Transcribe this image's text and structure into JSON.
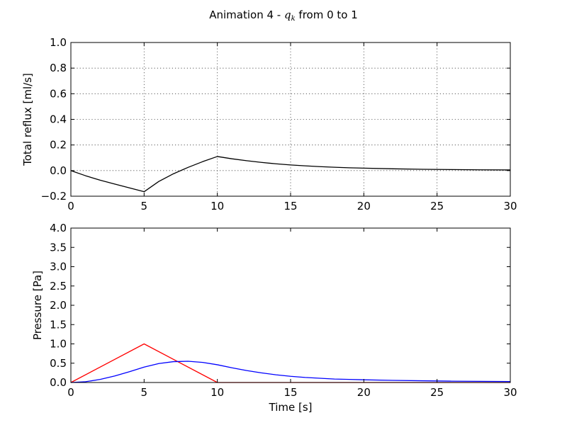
{
  "figure": {
    "title_prefix": "Animation 4 - ",
    "title_var": "q",
    "title_sub": "k",
    "title_suffix": " from 0 to 1"
  },
  "colors": {
    "axes": "#000000",
    "black_series": "#000000",
    "red_series": "#ff0000",
    "blue_series": "#0000ff"
  },
  "chart_data": [
    {
      "type": "line",
      "title": "",
      "xlabel": "",
      "ylabel": "Total reflux [ml/s]",
      "xlim": [
        0,
        30
      ],
      "ylim": [
        -0.2,
        1.0
      ],
      "xticks": [
        0,
        5,
        10,
        15,
        20,
        25,
        30
      ],
      "yticks": [
        -0.2,
        0.0,
        0.2,
        0.4,
        0.6,
        0.8,
        1.0
      ],
      "ytick_labels": [
        "−0.2",
        "0.0",
        "0.2",
        "0.4",
        "0.6",
        "0.8",
        "1.0"
      ],
      "grid": true,
      "series": [
        {
          "color": "#000000",
          "x": [
            0,
            1,
            2,
            3,
            4,
            5,
            6,
            7,
            8,
            9,
            10,
            11,
            12,
            13,
            14,
            15,
            16,
            17,
            18,
            19,
            20,
            22,
            24,
            26,
            28,
            30
          ],
          "y": [
            0.0,
            -0.04,
            -0.075,
            -0.105,
            -0.135,
            -0.165,
            -0.085,
            -0.025,
            0.025,
            0.07,
            0.11,
            0.092,
            0.077,
            0.064,
            0.053,
            0.044,
            0.037,
            0.031,
            0.026,
            0.022,
            0.019,
            0.014,
            0.01,
            0.008,
            0.006,
            0.005
          ]
        }
      ]
    },
    {
      "type": "line",
      "title": "",
      "xlabel": "Time [s]",
      "ylabel": "Pressure [Pa]",
      "xlim": [
        0,
        30
      ],
      "ylim": [
        0.0,
        4.0
      ],
      "xticks": [
        0,
        5,
        10,
        15,
        20,
        25,
        30
      ],
      "yticks": [
        0.0,
        0.5,
        1.0,
        1.5,
        2.0,
        2.5,
        3.0,
        3.5,
        4.0
      ],
      "ytick_labels": [
        "0.0",
        "0.5",
        "1.0",
        "1.5",
        "2.0",
        "2.5",
        "3.0",
        "3.5",
        "4.0"
      ],
      "grid": false,
      "series": [
        {
          "color": "#ff0000",
          "x": [
            0,
            5,
            10,
            30
          ],
          "y": [
            0.0,
            1.0,
            0.0,
            0.0
          ]
        },
        {
          "color": "#0000ff",
          "x": [
            0,
            1,
            2,
            3,
            4,
            5,
            6,
            7,
            8,
            9,
            10,
            11,
            12,
            13,
            14,
            15,
            16,
            17,
            18,
            19,
            20,
            22,
            24,
            26,
            28,
            30
          ],
          "y": [
            0.0,
            0.02,
            0.08,
            0.17,
            0.28,
            0.4,
            0.49,
            0.54,
            0.55,
            0.52,
            0.46,
            0.38,
            0.31,
            0.25,
            0.2,
            0.16,
            0.13,
            0.11,
            0.09,
            0.08,
            0.07,
            0.055,
            0.045,
            0.035,
            0.03,
            0.025
          ]
        }
      ]
    }
  ]
}
